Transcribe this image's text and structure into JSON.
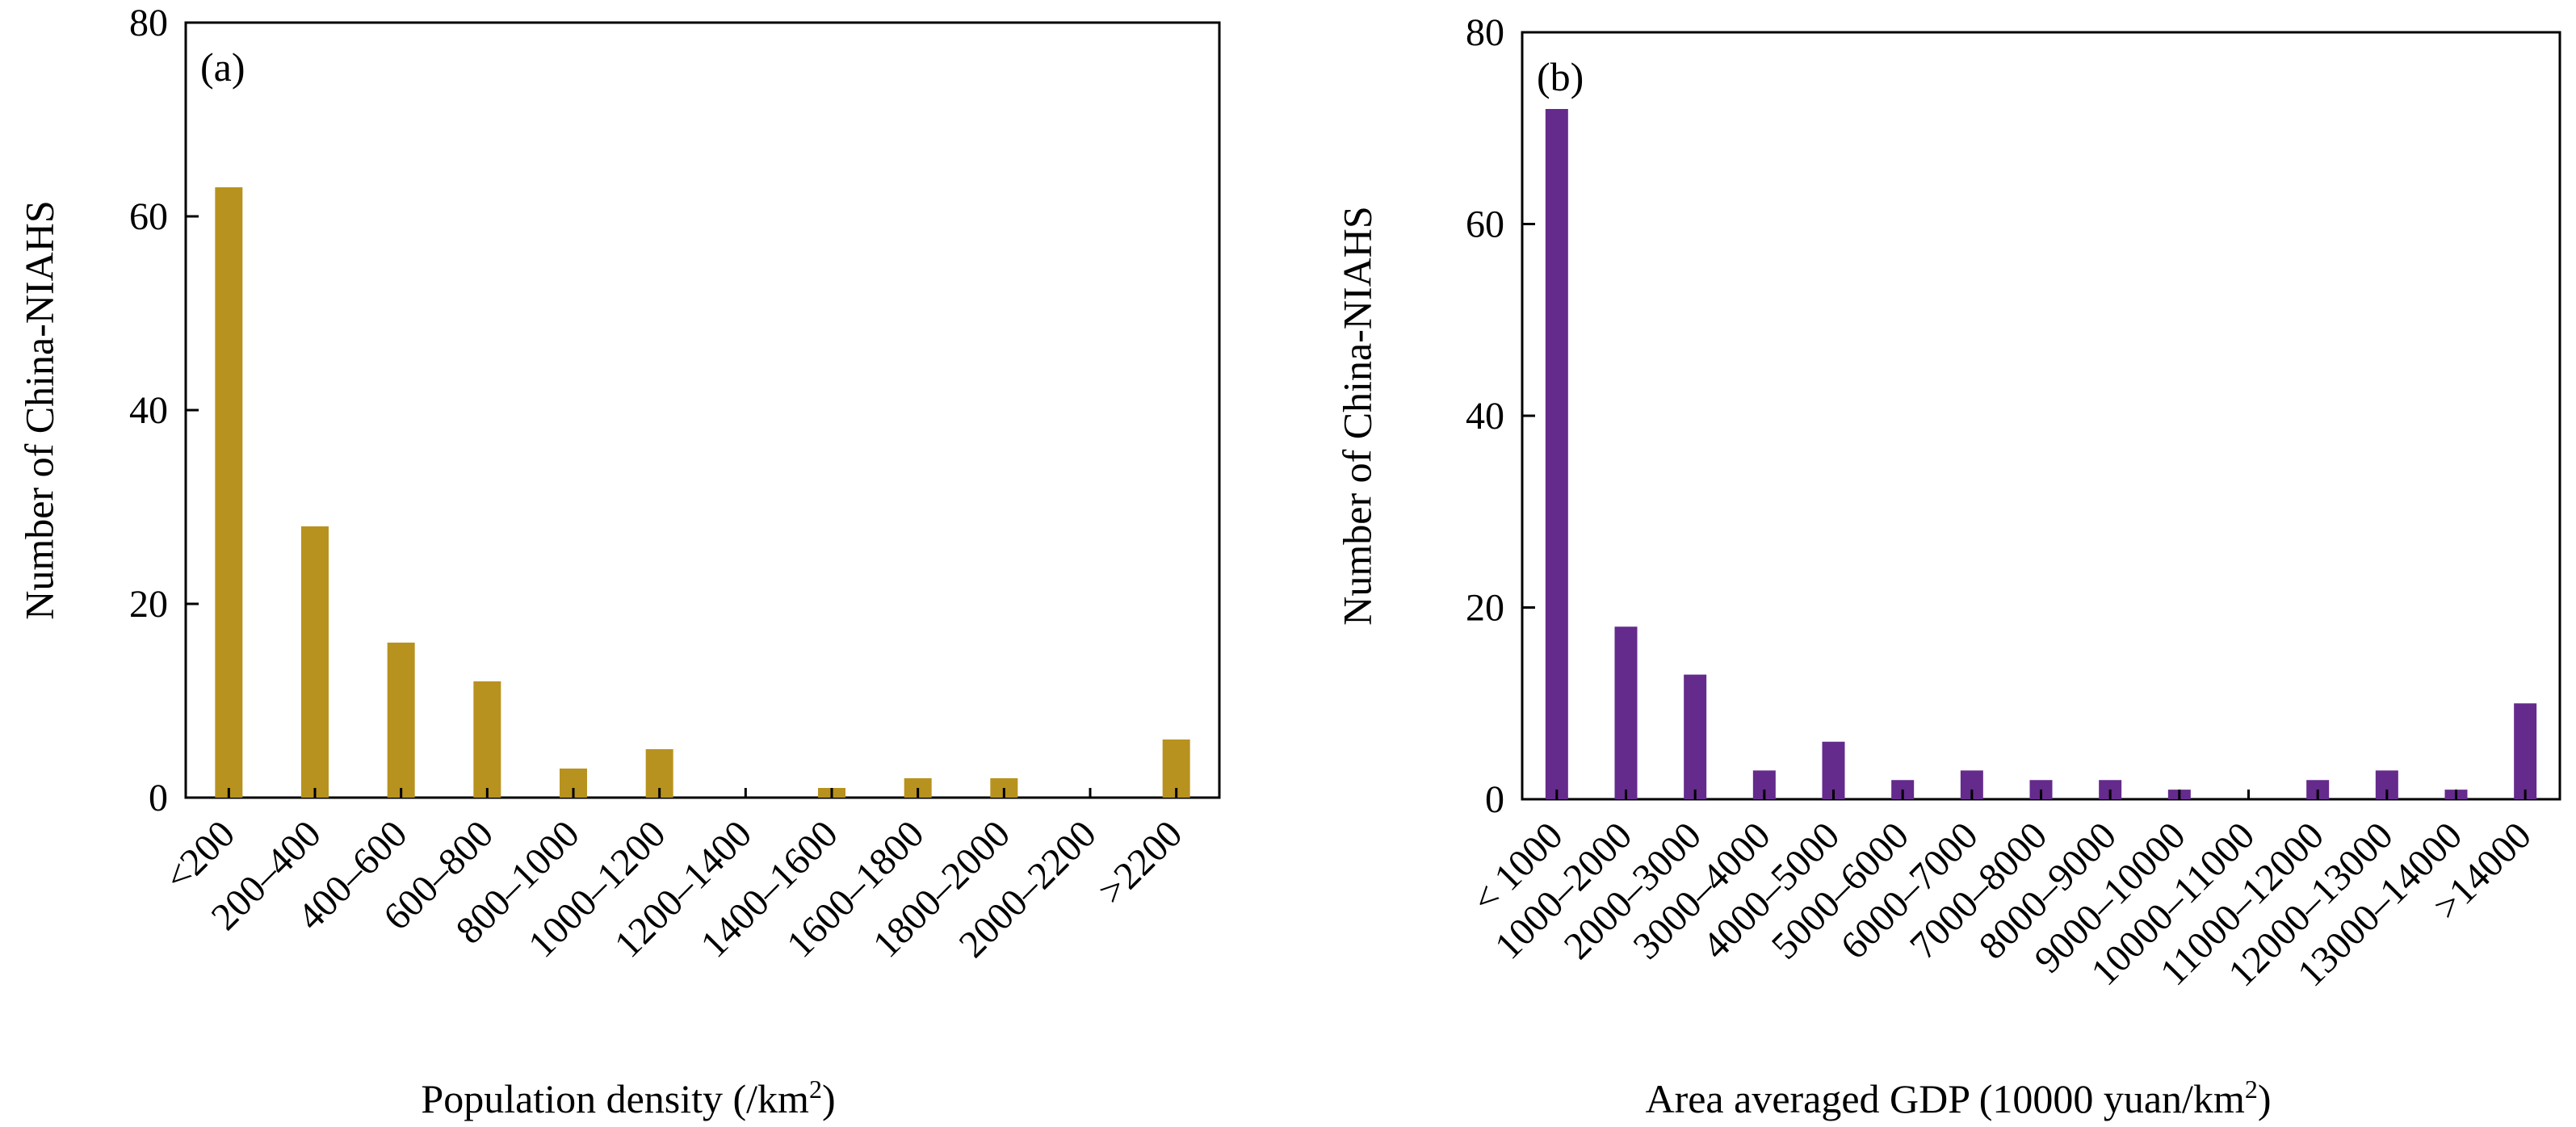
{
  "chart_data": [
    {
      "type": "bar",
      "panel_label": "(a)",
      "categories": [
        "<200",
        "200–400",
        "400–600",
        "600–800",
        "800–1000",
        "1000–1200",
        "1200–1400",
        "1400–1600",
        "1600–1800",
        "1800–2000",
        "2000–2200",
        ">2200"
      ],
      "values": [
        63,
        28,
        16,
        12,
        3,
        5,
        0,
        1,
        2,
        2,
        0,
        6
      ],
      "color": "#B8921F",
      "xlabel": "Population density (/km",
      "xlabel_sup": "2",
      "xlabel_end": ")",
      "ylabel": "Number of China-NIAHS",
      "ylim": [
        0,
        80
      ],
      "yticks": [
        0,
        20,
        40,
        60,
        80
      ],
      "grid": false
    },
    {
      "type": "bar",
      "panel_label": "(b)",
      "categories": [
        "< 1000",
        "1000–2000",
        "2000–3000",
        "3000–4000",
        "4000–5000",
        "5000–6000",
        "6000–7000",
        "7000–8000",
        "8000–9000",
        "9000–10000",
        "10000–11000",
        "11000–12000",
        "12000–13000",
        "13000–14000",
        ">14000"
      ],
      "values": [
        72,
        18,
        13,
        3,
        6,
        2,
        3,
        2,
        2,
        1,
        0,
        2,
        3,
        1,
        10
      ],
      "color": "#642A8C",
      "xlabel": "Area averaged GDP (10000 yuan/km",
      "xlabel_sup": "2",
      "xlabel_end": ")",
      "ylabel": "Number of China-NIAHS",
      "ylim": [
        0,
        80
      ],
      "yticks": [
        0,
        20,
        40,
        60,
        80
      ],
      "grid": false
    }
  ]
}
